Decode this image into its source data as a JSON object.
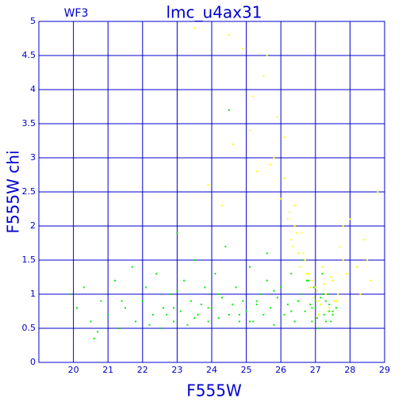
{
  "chart_data": {
    "type": "scatter",
    "title": "lmc_u4ax31",
    "subtitle": "WF3",
    "x_label": "F555W",
    "y_label": "F555W chi",
    "xlim": [
      19,
      29
    ],
    "ylim": [
      0,
      5
    ],
    "xticks": [
      20,
      21,
      22,
      23,
      24,
      25,
      26,
      27,
      28,
      29
    ],
    "yticks": [
      0,
      0.5,
      1,
      1.5,
      2,
      2.5,
      3,
      3.5,
      4,
      4.5,
      5
    ],
    "grid": true,
    "axis_color": "#0000cc",
    "series": [
      {
        "color": "#00ee00",
        "x": [
          19.9,
          20.1,
          20.3,
          20.5,
          20.6,
          20.8,
          21.0,
          21.2,
          21.3,
          21.5,
          21.7,
          21.8,
          22.0,
          22.1,
          22.3,
          22.4,
          22.5,
          22.6,
          22.8,
          22.9,
          23.0,
          23.1,
          23.2,
          23.3,
          23.4,
          23.5,
          23.6,
          23.7,
          23.8,
          23.9,
          24.0,
          24.1,
          24.2,
          24.3,
          24.4,
          24.5,
          24.6,
          24.7,
          24.8,
          24.9,
          25.0,
          25.1,
          25.2,
          25.3,
          25.4,
          25.5,
          25.6,
          25.7,
          25.8,
          25.9,
          26.0,
          26.1,
          26.2,
          26.3,
          26.4,
          26.5,
          26.6,
          26.7,
          26.8,
          26.9,
          27.0,
          27.1,
          27.2,
          27.3,
          27.4,
          27.5,
          27.6,
          26.95,
          27.05,
          27.15,
          27.25,
          27.35,
          27.45,
          26.85,
          26.75,
          27.1,
          27.3,
          27.5,
          27.2,
          27.0,
          26.9,
          27.4,
          27.6,
          22.2,
          22.9,
          23.5,
          24.2,
          24.8,
          25.3,
          25.8,
          26.3,
          21.4,
          20.7,
          23.0,
          24.5,
          25.6,
          26.6,
          22.7,
          23.9,
          25.1
        ],
        "values": [
          1.0,
          0.8,
          1.1,
          0.6,
          0.35,
          0.9,
          0.7,
          1.2,
          0.5,
          0.8,
          1.4,
          0.6,
          0.9,
          1.1,
          0.7,
          1.3,
          0.5,
          0.8,
          1.0,
          0.6,
          1.9,
          0.75,
          1.2,
          0.55,
          0.9,
          1.5,
          0.7,
          0.85,
          1.1,
          0.6,
          0.8,
          1.3,
          0.65,
          0.95,
          1.7,
          0.7,
          0.85,
          1.1,
          0.6,
          0.9,
          0.75,
          1.4,
          0.6,
          0.9,
          1.0,
          0.7,
          1.2,
          0.8,
          0.55,
          0.95,
          1.1,
          0.7,
          0.85,
          1.3,
          0.6,
          0.9,
          1.0,
          0.75,
          1.2,
          0.8,
          0.9,
          0.7,
          1.0,
          0.6,
          0.85,
          0.75,
          0.8,
          1.1,
          0.65,
          0.95,
          0.7,
          1.0,
          0.6,
          0.85,
          1.2,
          0.5,
          0.9,
          0.7,
          1.3,
          0.8,
          0.6,
          0.75,
          0.9,
          0.55,
          0.8,
          0.65,
          1.0,
          0.7,
          0.85,
          1.05,
          0.75,
          0.9,
          0.45,
          1.05,
          3.7,
          1.6,
          1.5,
          0.7,
          0.8,
          0.6
        ]
      },
      {
        "color": "#ffff00",
        "x": [
          23.5,
          23.9,
          24.3,
          24.6,
          24.9,
          25.1,
          25.3,
          25.5,
          25.7,
          25.9,
          26.0,
          26.1,
          26.2,
          26.3,
          26.4,
          26.5,
          26.6,
          26.7,
          26.8,
          26.9,
          27.0,
          27.1,
          27.2,
          27.3,
          27.4,
          27.5,
          27.6,
          27.7,
          27.8,
          27.9,
          28.0,
          28.2,
          28.4,
          28.6,
          28.8,
          26.25,
          26.35,
          26.45,
          26.55,
          26.65,
          26.75,
          26.85,
          26.95,
          27.05,
          27.15,
          27.25,
          27.35,
          27.45,
          27.55,
          27.65,
          25.6,
          25.8,
          26.1,
          24.5,
          25.2,
          27.8,
          28.3,
          28.5,
          26.4,
          27.1
        ],
        "values": [
          4.9,
          2.6,
          2.3,
          3.2,
          4.6,
          3.4,
          2.8,
          4.2,
          2.9,
          3.6,
          2.4,
          3.3,
          2.1,
          1.8,
          2.0,
          1.6,
          1.9,
          1.5,
          1.3,
          1.2,
          1.1,
          0.9,
          1.4,
          1.0,
          0.8,
          1.2,
          0.9,
          1.7,
          1.5,
          1.3,
          2.1,
          1.4,
          1.8,
          1.2,
          2.5,
          2.2,
          1.7,
          1.9,
          1.4,
          1.6,
          1.3,
          1.1,
          0.95,
          1.05,
          0.85,
          1.15,
          0.75,
          1.25,
          0.9,
          1.0,
          4.5,
          3.0,
          2.7,
          4.8,
          3.9,
          2.0,
          1.0,
          1.5,
          2.3,
          0.7
        ]
      }
    ]
  }
}
